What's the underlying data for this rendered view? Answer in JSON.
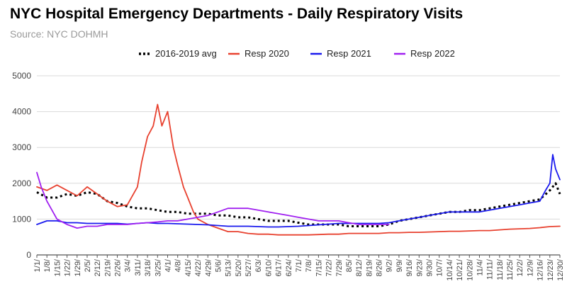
{
  "chart_data": {
    "type": "line",
    "title": "NYC Hospital Emergency Departments - Daily Respiratory Visits",
    "subtitle": "Source: NYC DOHMH",
    "xlabel": "",
    "ylabel": "",
    "ylim": [
      0,
      5000
    ],
    "yticks": [
      0,
      1000,
      2000,
      3000,
      4000,
      5000
    ],
    "grid": true,
    "legend_position": "top",
    "x_tick_labels": [
      "1/1/",
      "1/8/",
      "1/15/",
      "1/22/",
      "1/29/",
      "2/5/",
      "2/12/",
      "2/19/",
      "2/26/",
      "3/4/",
      "3/11/",
      "3/18/",
      "3/25/",
      "4/1/",
      "4/8/",
      "4/15/",
      "4/22/",
      "4/29/",
      "5/6/",
      "5/13/",
      "5/20/",
      "5/27/",
      "6/3/",
      "6/10/",
      "6/17/",
      "6/24/",
      "7/1/",
      "7/8/",
      "7/15/",
      "7/22/",
      "7/29/",
      "8/5/",
      "8/12/",
      "8/19/",
      "8/26/",
      "9/2/",
      "9/9/",
      "9/16/",
      "9/23/",
      "9/30/",
      "10/7/",
      "10/14/",
      "10/21/",
      "10/28/",
      "11/4/",
      "11/11/",
      "11/18/",
      "11/25/",
      "12/2/",
      "12/9/",
      "12/16/",
      "12/23/",
      "12/30/"
    ],
    "x_unit": "day of year (1 = Jan 1)",
    "series": [
      {
        "name": "2016-2019 avg",
        "color": "#000000",
        "style": "dotted",
        "points": [
          [
            1,
            1750
          ],
          [
            8,
            1600
          ],
          [
            15,
            1600
          ],
          [
            22,
            1700
          ],
          [
            29,
            1650
          ],
          [
            36,
            1750
          ],
          [
            43,
            1700
          ],
          [
            50,
            1500
          ],
          [
            57,
            1450
          ],
          [
            64,
            1350
          ],
          [
            71,
            1300
          ],
          [
            78,
            1300
          ],
          [
            85,
            1250
          ],
          [
            92,
            1200
          ],
          [
            99,
            1200
          ],
          [
            106,
            1150
          ],
          [
            113,
            1150
          ],
          [
            120,
            1150
          ],
          [
            127,
            1100
          ],
          [
            134,
            1100
          ],
          [
            141,
            1050
          ],
          [
            148,
            1050
          ],
          [
            155,
            1000
          ],
          [
            162,
            950
          ],
          [
            169,
            950
          ],
          [
            176,
            950
          ],
          [
            183,
            900
          ],
          [
            190,
            850
          ],
          [
            197,
            850
          ],
          [
            204,
            850
          ],
          [
            211,
            850
          ],
          [
            218,
            800
          ],
          [
            225,
            800
          ],
          [
            232,
            800
          ],
          [
            239,
            800
          ],
          [
            246,
            850
          ],
          [
            253,
            950
          ],
          [
            260,
            1000
          ],
          [
            267,
            1050
          ],
          [
            274,
            1100
          ],
          [
            281,
            1150
          ],
          [
            288,
            1200
          ],
          [
            295,
            1200
          ],
          [
            302,
            1250
          ],
          [
            309,
            1250
          ],
          [
            316,
            1300
          ],
          [
            323,
            1350
          ],
          [
            330,
            1400
          ],
          [
            337,
            1450
          ],
          [
            344,
            1500
          ],
          [
            351,
            1550
          ],
          [
            358,
            1800
          ],
          [
            362,
            2000
          ],
          [
            365,
            1700
          ]
        ]
      },
      {
        "name": "Resp 2020",
        "color": "#e8412f",
        "style": "solid",
        "points": [
          [
            1,
            1900
          ],
          [
            8,
            1800
          ],
          [
            15,
            1950
          ],
          [
            22,
            1800
          ],
          [
            29,
            1650
          ],
          [
            36,
            1900
          ],
          [
            43,
            1700
          ],
          [
            50,
            1500
          ],
          [
            57,
            1350
          ],
          [
            64,
            1400
          ],
          [
            71,
            1900
          ],
          [
            74,
            2600
          ],
          [
            78,
            3300
          ],
          [
            82,
            3600
          ],
          [
            85,
            4200
          ],
          [
            88,
            3600
          ],
          [
            92,
            4000
          ],
          [
            96,
            3000
          ],
          [
            99,
            2500
          ],
          [
            103,
            1900
          ],
          [
            106,
            1600
          ],
          [
            110,
            1200
          ],
          [
            113,
            1000
          ],
          [
            120,
            850
          ],
          [
            127,
            750
          ],
          [
            134,
            650
          ],
          [
            141,
            650
          ],
          [
            148,
            600
          ],
          [
            155,
            580
          ],
          [
            162,
            580
          ],
          [
            169,
            560
          ],
          [
            176,
            560
          ],
          [
            183,
            560
          ],
          [
            190,
            560
          ],
          [
            197,
            570
          ],
          [
            204,
            580
          ],
          [
            211,
            580
          ],
          [
            218,
            600
          ],
          [
            225,
            600
          ],
          [
            232,
            600
          ],
          [
            239,
            600
          ],
          [
            246,
            620
          ],
          [
            253,
            620
          ],
          [
            260,
            630
          ],
          [
            267,
            630
          ],
          [
            274,
            640
          ],
          [
            281,
            650
          ],
          [
            288,
            660
          ],
          [
            295,
            660
          ],
          [
            302,
            670
          ],
          [
            309,
            680
          ],
          [
            316,
            680
          ],
          [
            323,
            700
          ],
          [
            330,
            720
          ],
          [
            337,
            730
          ],
          [
            344,
            740
          ],
          [
            351,
            760
          ],
          [
            358,
            790
          ],
          [
            365,
            800
          ]
        ]
      },
      {
        "name": "Resp 2021",
        "color": "#1a1aee",
        "style": "solid",
        "points": [
          [
            1,
            850
          ],
          [
            8,
            950
          ],
          [
            15,
            950
          ],
          [
            22,
            900
          ],
          [
            29,
            900
          ],
          [
            36,
            880
          ],
          [
            43,
            880
          ],
          [
            50,
            880
          ],
          [
            57,
            880
          ],
          [
            64,
            860
          ],
          [
            71,
            880
          ],
          [
            78,
            900
          ],
          [
            85,
            880
          ],
          [
            92,
            880
          ],
          [
            99,
            870
          ],
          [
            106,
            860
          ],
          [
            113,
            850
          ],
          [
            120,
            840
          ],
          [
            127,
            820
          ],
          [
            134,
            800
          ],
          [
            141,
            800
          ],
          [
            148,
            800
          ],
          [
            155,
            790
          ],
          [
            162,
            780
          ],
          [
            169,
            780
          ],
          [
            176,
            790
          ],
          [
            183,
            800
          ],
          [
            190,
            820
          ],
          [
            197,
            840
          ],
          [
            204,
            860
          ],
          [
            211,
            880
          ],
          [
            218,
            880
          ],
          [
            225,
            880
          ],
          [
            232,
            880
          ],
          [
            239,
            880
          ],
          [
            246,
            900
          ],
          [
            253,
            950
          ],
          [
            260,
            1000
          ],
          [
            267,
            1050
          ],
          [
            274,
            1100
          ],
          [
            281,
            1150
          ],
          [
            288,
            1200
          ],
          [
            295,
            1200
          ],
          [
            302,
            1200
          ],
          [
            309,
            1200
          ],
          [
            316,
            1250
          ],
          [
            323,
            1300
          ],
          [
            330,
            1350
          ],
          [
            337,
            1400
          ],
          [
            344,
            1450
          ],
          [
            351,
            1500
          ],
          [
            355,
            1800
          ],
          [
            358,
            2000
          ],
          [
            360,
            2800
          ],
          [
            362,
            2400
          ],
          [
            365,
            2100
          ]
        ]
      },
      {
        "name": "Resp 2022",
        "color": "#a020f0",
        "style": "solid",
        "points": [
          [
            1,
            2300
          ],
          [
            4,
            1900
          ],
          [
            8,
            1500
          ],
          [
            15,
            1000
          ],
          [
            22,
            850
          ],
          [
            29,
            750
          ],
          [
            36,
            800
          ],
          [
            43,
            800
          ],
          [
            50,
            850
          ],
          [
            57,
            850
          ],
          [
            64,
            850
          ],
          [
            71,
            880
          ],
          [
            78,
            900
          ],
          [
            85,
            920
          ],
          [
            92,
            950
          ],
          [
            99,
            950
          ],
          [
            106,
            1000
          ],
          [
            113,
            1050
          ],
          [
            120,
            1100
          ],
          [
            127,
            1200
          ],
          [
            134,
            1300
          ],
          [
            141,
            1300
          ],
          [
            148,
            1300
          ],
          [
            155,
            1250
          ],
          [
            162,
            1200
          ],
          [
            169,
            1150
          ],
          [
            176,
            1100
          ],
          [
            183,
            1050
          ],
          [
            190,
            1000
          ],
          [
            197,
            950
          ],
          [
            204,
            950
          ],
          [
            211,
            950
          ],
          [
            218,
            900
          ],
          [
            225,
            850
          ],
          [
            232,
            850
          ],
          [
            239,
            850
          ],
          [
            246,
            850
          ]
        ]
      }
    ]
  }
}
